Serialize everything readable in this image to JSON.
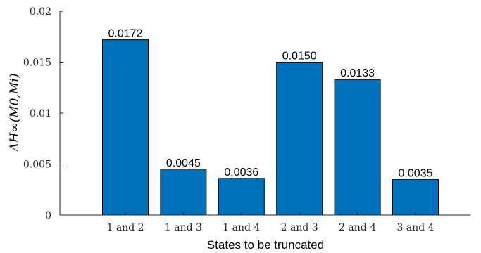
{
  "chart_data": {
    "type": "bar",
    "categories": [
      "1 and 2",
      "1 and 3",
      "1 and 4",
      "2 and 3",
      "2 and 4",
      "3 and 4"
    ],
    "values": [
      0.0172,
      0.0045,
      0.0036,
      0.015,
      0.0133,
      0.0035
    ],
    "data_labels": [
      "0.0172",
      "0.0045",
      "0.0036",
      "0.0150",
      "0.0133",
      "0.0035"
    ],
    "title": "",
    "xlabel": "States to be truncated",
    "ylabel": "ΔH∞(M0,Mi)",
    "ylim": [
      0,
      0.02
    ],
    "yticks": [
      0,
      0.005,
      0.01,
      0.015,
      0.02
    ],
    "ytick_labels": [
      "0",
      "0.005",
      "0.01",
      "0.015",
      "0.02"
    ],
    "grid": false,
    "bar_color": "#0072BD",
    "bar_edge_color": "#000000"
  }
}
